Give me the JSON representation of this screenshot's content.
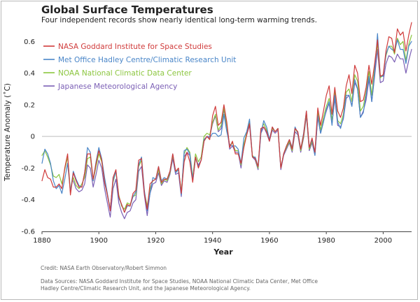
{
  "header": {
    "title": "Global Surface Temperatures",
    "subtitle": "Four independent records show nearly identical long-term warming trends."
  },
  "footer": {
    "credit": "Credit: NASA Earth Observatory/Robert Simmon",
    "sources": "Data Sources: NASA Goddard Institute for Space Studies, NOAA National Climatic Data Center, Met Office Hadley Centre/Climatic Research Unit, and the Japanese Meteorological Agency."
  },
  "chart_data": {
    "type": "line",
    "title": "Global Surface Temperatures",
    "subtitle": "Four independent records show nearly identical long-term warming trends.",
    "xlabel": "Year",
    "ylabel": "Temperature Anomaly (˚C)",
    "xlim": [
      1880,
      2010
    ],
    "ylim": [
      -0.6,
      0.65
    ],
    "xticks": [
      1880,
      1900,
      1920,
      1940,
      1960,
      1980,
      2000
    ],
    "yticks": [
      -0.6,
      -0.4,
      -0.2,
      0,
      0.2,
      0.4,
      0.6
    ],
    "ytick_labels": [
      "-0.6",
      "-0.4",
      "-0.2",
      "0",
      "0.2",
      "0.4",
      "0.6"
    ],
    "grid": false,
    "zero_line": true,
    "legend_position": "top-left",
    "x_start": 1880,
    "x": [
      1880,
      1881,
      1882,
      1883,
      1884,
      1885,
      1886,
      1887,
      1888,
      1889,
      1890,
      1891,
      1892,
      1893,
      1894,
      1895,
      1896,
      1897,
      1898,
      1899,
      1900,
      1901,
      1902,
      1903,
      1904,
      1905,
      1906,
      1907,
      1908,
      1909,
      1910,
      1911,
      1912,
      1913,
      1914,
      1915,
      1916,
      1917,
      1918,
      1919,
      1920,
      1921,
      1922,
      1923,
      1924,
      1925,
      1926,
      1927,
      1928,
      1929,
      1930,
      1931,
      1932,
      1933,
      1934,
      1935,
      1936,
      1937,
      1938,
      1939,
      1940,
      1941,
      1942,
      1943,
      1944,
      1945,
      1946,
      1947,
      1948,
      1949,
      1950,
      1951,
      1952,
      1953,
      1954,
      1955,
      1956,
      1957,
      1958,
      1959,
      1960,
      1961,
      1962,
      1963,
      1964,
      1965,
      1966,
      1967,
      1968,
      1969,
      1970,
      1971,
      1972,
      1973,
      1974,
      1975,
      1976,
      1977,
      1978,
      1979,
      1980,
      1981,
      1982,
      1983,
      1984,
      1985,
      1986,
      1987,
      1988,
      1989,
      1990,
      1991,
      1992,
      1993,
      1994,
      1995,
      1996,
      1997,
      1998,
      1999,
      2000,
      2001,
      2002,
      2003,
      2004,
      2005,
      2006,
      2007,
      2008,
      2009,
      2010
    ],
    "series": [
      {
        "name": "NASA Goddard Institute for Space Studies",
        "color": "#d03b3b",
        "values": [
          -0.28,
          -0.21,
          -0.26,
          -0.27,
          -0.32,
          -0.32,
          -0.3,
          -0.33,
          -0.2,
          -0.11,
          -0.37,
          -0.23,
          -0.28,
          -0.32,
          -0.32,
          -0.23,
          -0.11,
          -0.11,
          -0.27,
          -0.17,
          -0.09,
          -0.15,
          -0.29,
          -0.37,
          -0.47,
          -0.26,
          -0.21,
          -0.38,
          -0.43,
          -0.48,
          -0.43,
          -0.44,
          -0.36,
          -0.34,
          -0.15,
          -0.14,
          -0.36,
          -0.46,
          -0.3,
          -0.28,
          -0.27,
          -0.19,
          -0.29,
          -0.27,
          -0.27,
          -0.22,
          -0.11,
          -0.22,
          -0.2,
          -0.36,
          -0.16,
          -0.1,
          -0.16,
          -0.29,
          -0.13,
          -0.2,
          -0.15,
          -0.03,
          -0.0,
          -0.02,
          0.13,
          0.19,
          0.07,
          0.09,
          0.2,
          0.09,
          -0.07,
          -0.03,
          -0.11,
          -0.11,
          -0.17,
          -0.07,
          0.01,
          0.08,
          -0.13,
          -0.14,
          -0.19,
          0.05,
          0.06,
          0.03,
          -0.03,
          0.06,
          0.03,
          0.05,
          -0.2,
          -0.11,
          -0.06,
          -0.02,
          -0.08,
          0.05,
          0.03,
          -0.08,
          0.01,
          0.16,
          -0.07,
          -0.01,
          -0.1,
          0.18,
          0.07,
          0.16,
          0.26,
          0.32,
          0.14,
          0.31,
          0.16,
          0.12,
          0.18,
          0.32,
          0.39,
          0.27,
          0.45,
          0.4,
          0.22,
          0.23,
          0.31,
          0.45,
          0.33,
          0.46,
          0.61,
          0.38,
          0.39,
          0.54,
          0.63,
          0.62,
          0.53,
          0.68,
          0.64,
          0.66,
          0.54,
          0.64,
          0.72
        ]
      },
      {
        "name": "Met Office Hadley Centre/Climatic Research Unit",
        "color": "#4a86c8",
        "values": [
          -0.17,
          -0.08,
          -0.11,
          -0.17,
          -0.28,
          -0.33,
          -0.31,
          -0.36,
          -0.27,
          -0.17,
          -0.35,
          -0.22,
          -0.27,
          -0.31,
          -0.32,
          -0.23,
          -0.07,
          -0.1,
          -0.28,
          -0.16,
          -0.07,
          -0.14,
          -0.26,
          -0.36,
          -0.46,
          -0.28,
          -0.22,
          -0.39,
          -0.43,
          -0.48,
          -0.44,
          -0.44,
          -0.38,
          -0.35,
          -0.18,
          -0.13,
          -0.34,
          -0.47,
          -0.36,
          -0.26,
          -0.27,
          -0.19,
          -0.28,
          -0.26,
          -0.27,
          -0.22,
          -0.11,
          -0.23,
          -0.21,
          -0.37,
          -0.09,
          -0.08,
          -0.11,
          -0.27,
          -0.13,
          -0.19,
          -0.15,
          -0.02,
          -0.0,
          -0.01,
          0.02,
          0.02,
          0.0,
          0.01,
          0.14,
          0.03,
          -0.05,
          -0.06,
          -0.06,
          -0.08,
          -0.17,
          -0.01,
          0.03,
          0.11,
          -0.13,
          -0.13,
          -0.19,
          0.02,
          0.1,
          0.06,
          -0.02,
          0.06,
          0.03,
          0.05,
          -0.2,
          -0.11,
          -0.06,
          -0.02,
          -0.07,
          0.06,
          0.02,
          -0.08,
          0.02,
          0.16,
          -0.07,
          -0.02,
          -0.12,
          0.13,
          0.02,
          0.09,
          0.17,
          0.22,
          0.07,
          0.26,
          0.09,
          0.05,
          0.12,
          0.26,
          0.26,
          0.19,
          0.36,
          0.3,
          0.12,
          0.15,
          0.26,
          0.38,
          0.22,
          0.4,
          0.65,
          0.38,
          0.38,
          0.52,
          0.57,
          0.55,
          0.54,
          0.61,
          0.55,
          0.55,
          0.46,
          0.57,
          0.6
        ]
      },
      {
        "name": "NOAA National Climatic Data Center",
        "color": "#8cc63f",
        "values": [
          -0.12,
          -0.09,
          -0.13,
          -0.18,
          -0.25,
          -0.26,
          -0.24,
          -0.3,
          -0.21,
          -0.13,
          -0.34,
          -0.26,
          -0.31,
          -0.33,
          -0.3,
          -0.26,
          -0.14,
          -0.13,
          -0.28,
          -0.19,
          -0.11,
          -0.16,
          -0.29,
          -0.37,
          -0.46,
          -0.29,
          -0.22,
          -0.37,
          -0.44,
          -0.46,
          -0.42,
          -0.43,
          -0.38,
          -0.37,
          -0.19,
          -0.15,
          -0.35,
          -0.44,
          -0.33,
          -0.28,
          -0.27,
          -0.21,
          -0.3,
          -0.27,
          -0.28,
          -0.23,
          -0.12,
          -0.22,
          -0.21,
          -0.35,
          -0.11,
          -0.07,
          -0.1,
          -0.26,
          -0.11,
          -0.16,
          -0.13,
          0.0,
          0.02,
          0.01,
          0.09,
          0.14,
          0.04,
          0.07,
          0.18,
          0.07,
          -0.06,
          -0.04,
          -0.09,
          -0.09,
          -0.18,
          -0.05,
          0.02,
          0.09,
          -0.12,
          -0.14,
          -0.2,
          0.04,
          0.08,
          0.04,
          -0.02,
          0.05,
          0.03,
          0.05,
          -0.2,
          -0.11,
          -0.07,
          -0.03,
          -0.09,
          0.05,
          0.02,
          -0.09,
          0.0,
          0.15,
          -0.08,
          -0.03,
          -0.11,
          0.15,
          0.04,
          0.12,
          0.19,
          0.24,
          0.1,
          0.28,
          0.1,
          0.08,
          0.14,
          0.28,
          0.3,
          0.22,
          0.39,
          0.35,
          0.16,
          0.19,
          0.28,
          0.41,
          0.26,
          0.43,
          0.59,
          0.37,
          0.39,
          0.51,
          0.57,
          0.57,
          0.52,
          0.62,
          0.58,
          0.6,
          0.48,
          0.58,
          0.64
        ]
      },
      {
        "name": "Japanese Meteorological Agency",
        "color": "#7b5fb5",
        "values": [
          null,
          null,
          null,
          null,
          null,
          null,
          null,
          null,
          null,
          null,
          null,
          -0.28,
          -0.33,
          -0.35,
          -0.34,
          -0.3,
          -0.18,
          -0.2,
          -0.32,
          -0.24,
          -0.15,
          -0.2,
          -0.33,
          -0.42,
          -0.51,
          -0.33,
          -0.27,
          -0.42,
          -0.48,
          -0.52,
          -0.48,
          -0.47,
          -0.42,
          -0.4,
          -0.22,
          -0.19,
          -0.37,
          -0.5,
          -0.36,
          -0.3,
          -0.29,
          -0.23,
          -0.31,
          -0.28,
          -0.29,
          -0.24,
          -0.14,
          -0.24,
          -0.23,
          -0.38,
          -0.13,
          -0.1,
          -0.12,
          -0.28,
          -0.14,
          -0.18,
          -0.15,
          -0.03,
          0.0,
          0.0,
          0.08,
          0.13,
          0.03,
          0.05,
          0.17,
          0.06,
          -0.08,
          -0.06,
          -0.1,
          -0.1,
          -0.2,
          -0.06,
          0.01,
          0.07,
          -0.13,
          -0.15,
          -0.21,
          0.02,
          0.06,
          0.02,
          -0.03,
          0.04,
          0.02,
          0.04,
          -0.21,
          -0.12,
          -0.08,
          -0.04,
          -0.1,
          0.03,
          0.01,
          -0.1,
          -0.01,
          0.13,
          -0.09,
          -0.04,
          -0.12,
          0.12,
          0.02,
          0.1,
          0.16,
          0.21,
          0.08,
          0.24,
          0.07,
          0.06,
          0.11,
          0.24,
          0.26,
          0.19,
          0.34,
          0.3,
          0.12,
          0.16,
          0.23,
          0.36,
          0.22,
          0.38,
          0.55,
          0.34,
          0.35,
          0.46,
          0.51,
          0.5,
          0.47,
          0.52,
          0.49,
          0.49,
          0.4,
          0.48,
          0.55
        ]
      }
    ]
  }
}
